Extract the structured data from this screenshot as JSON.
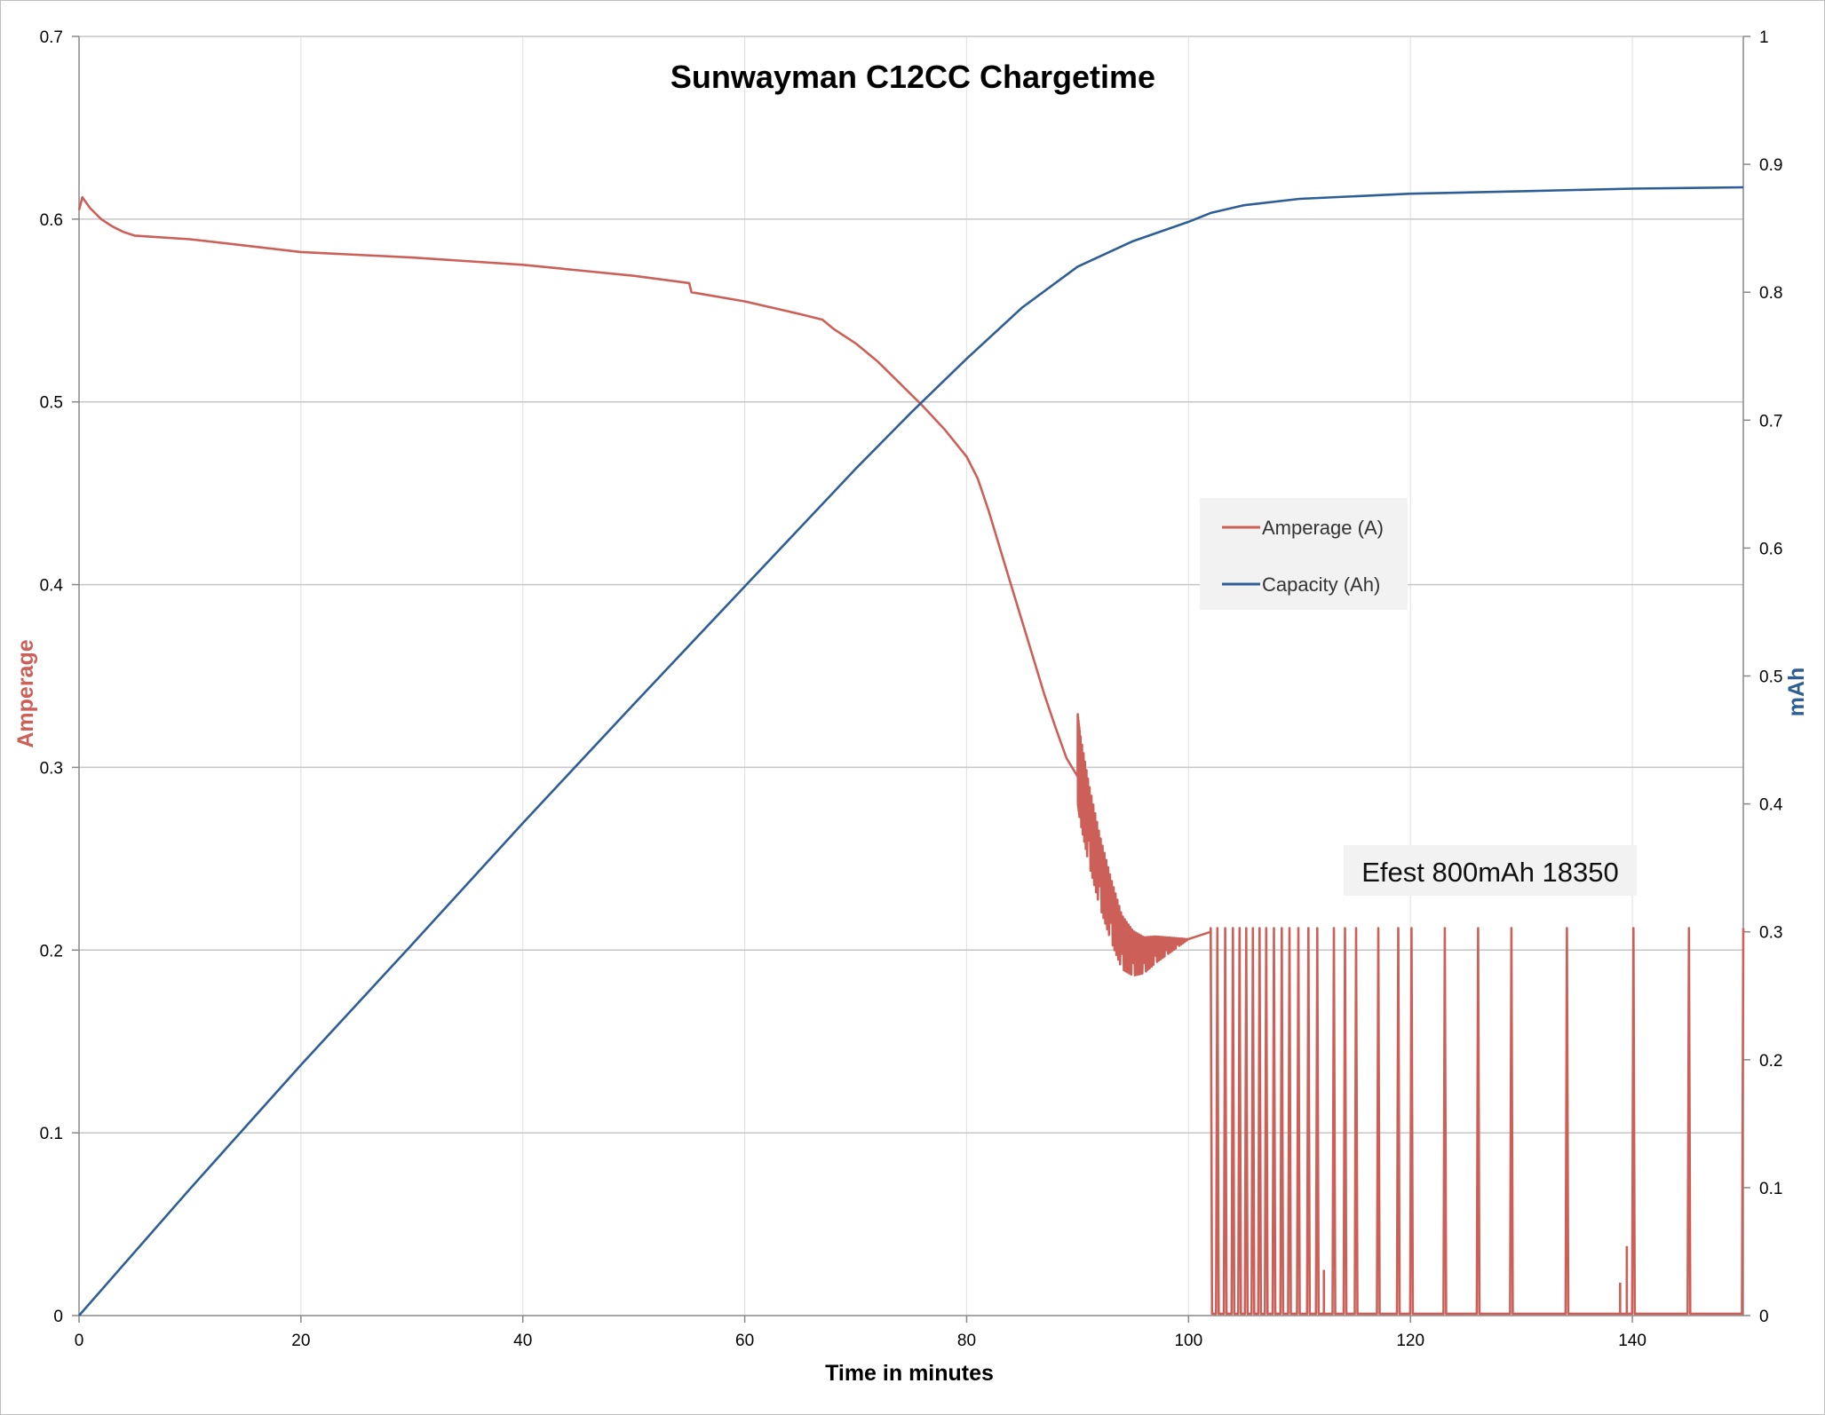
{
  "chart_data": {
    "type": "line",
    "title": "Sunwayman C12CC Chargetime",
    "xlabel": "Time in minutes",
    "ylabel_left": "Amperage",
    "ylabel_right": "mAh",
    "xlim": [
      0,
      150
    ],
    "ylim_left": [
      0,
      0.7
    ],
    "ylim_right": [
      0,
      1
    ],
    "x_ticks": [
      "0",
      "20",
      "40",
      "60",
      "80",
      "100",
      "120",
      "140"
    ],
    "y_left_ticks": [
      "0",
      "0.1",
      "0.2",
      "0.3",
      "0.4",
      "0.5",
      "0.6",
      "0.7"
    ],
    "y_right_ticks": [
      "0",
      "0.1",
      "0.2",
      "0.3",
      "0.4",
      "0.5",
      "0.6",
      "0.7",
      "0.8",
      "0.9",
      "1"
    ],
    "grid": true,
    "legend_position": "right-center",
    "annotation": "Efest 800mAh 18350",
    "colors": {
      "amperage": "#cc6058",
      "capacity": "#2e5e95",
      "grid": "#c6c6c6"
    },
    "series": [
      {
        "name": "Amperage (A)",
        "axis": "left",
        "x": [
          0,
          0.3,
          1,
          2,
          3,
          4,
          5,
          10,
          20,
          30,
          40,
          45,
          50,
          55,
          55.2,
          60,
          65,
          67,
          68,
          70,
          72,
          74,
          76,
          78,
          80,
          81,
          82,
          83,
          84,
          85,
          86,
          87,
          88,
          89,
          90,
          90.2,
          91,
          92,
          93,
          94,
          95,
          96,
          97,
          98,
          99,
          100,
          101,
          102
        ],
        "y": [
          0.605,
          0.612,
          0.606,
          0.6,
          0.596,
          0.593,
          0.591,
          0.589,
          0.582,
          0.579,
          0.575,
          0.572,
          0.569,
          0.565,
          0.56,
          0.555,
          0.548,
          0.545,
          0.54,
          0.532,
          0.522,
          0.51,
          0.498,
          0.485,
          0.47,
          0.458,
          0.44,
          0.42,
          0.4,
          0.38,
          0.36,
          0.34,
          0.322,
          0.305,
          0.295,
          0.285,
          0.26,
          0.235,
          0.215,
          0.198,
          0.193,
          0.193,
          0.197,
          0.2,
          0.203,
          0.206,
          0.208,
          0.21
        ],
        "pulse_phase": {
          "x_range": [
            102,
            150
          ],
          "on_level": 0.212,
          "off_level": 0.001,
          "pulse_x": [
            102,
            102.6,
            103.3,
            104,
            104.6,
            105.2,
            105.8,
            106.4,
            107,
            107.7,
            108.4,
            109.1,
            109.9,
            110.8,
            111.6,
            113.1,
            114.1,
            115.1,
            117.1,
            118.9,
            120.1,
            123.1,
            126.1,
            129.1,
            134.1,
            140.1,
            145.1,
            150
          ]
        },
        "small_spikes": [
          {
            "x": 112.2,
            "y": 0.025
          },
          {
            "x": 138.9,
            "y": 0.018
          },
          {
            "x": 139.5,
            "y": 0.038
          }
        ]
      },
      {
        "name": "Capacity (Ah)",
        "axis": "right",
        "x": [
          0,
          10,
          20,
          30,
          40,
          50,
          60,
          70,
          75,
          80,
          85,
          90,
          95,
          100,
          102,
          105,
          110,
          120,
          130,
          140,
          150
        ],
        "y": [
          0,
          0.099,
          0.196,
          0.29,
          0.385,
          0.478,
          0.57,
          0.662,
          0.706,
          0.748,
          0.788,
          0.82,
          0.84,
          0.855,
          0.862,
          0.868,
          0.873,
          0.877,
          0.879,
          0.881,
          0.882
        ]
      }
    ]
  }
}
